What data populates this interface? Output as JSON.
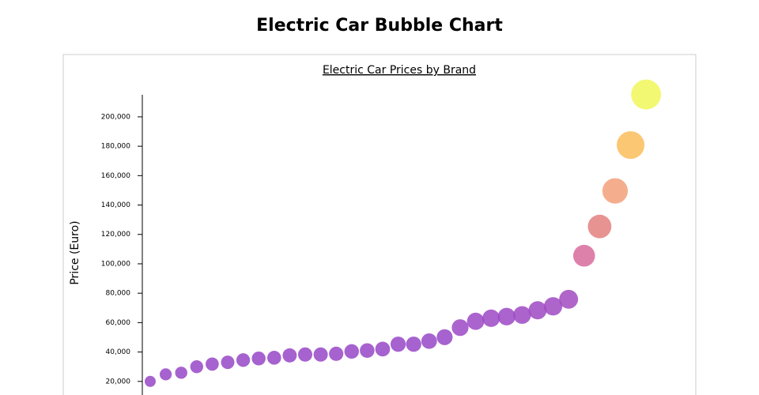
{
  "chart_data": {
    "type": "bubble",
    "title": "Electric Car Bubble Chart",
    "subtitle": "Electric Car Prices by Brand",
    "y_label": "Price (Euro)",
    "categories": [
      null,
      null,
      null,
      null,
      null,
      null,
      null,
      null,
      null,
      null,
      null,
      null,
      null,
      null,
      null,
      null,
      null,
      null,
      null,
      null,
      null,
      null,
      null,
      null,
      null,
      null,
      null,
      null,
      null,
      null,
      null,
      null,
      null
    ],
    "values": [
      20000,
      24800,
      25900,
      30000,
      31800,
      33000,
      34500,
      35600,
      36100,
      37700,
      38300,
      38300,
      38800,
      40400,
      41000,
      42000,
      45300,
      45300,
      47400,
      50100,
      56600,
      60900,
      63000,
      64100,
      65200,
      68400,
      71100,
      75900,
      105500,
      125400,
      149600,
      180800,
      215200
    ],
    "colors": [
      "#9747c7",
      "#9747c7",
      "#9747c7",
      "#9747c7",
      "#9747c7",
      "#9747c7",
      "#9747c7",
      "#9747c7",
      "#9747c7",
      "#9747c7",
      "#9747c7",
      "#9747c7",
      "#9747c7",
      "#9747c7",
      "#9747c7",
      "#9747c7",
      "#9747c7",
      "#9747c7",
      "#9747c7",
      "#9747c7",
      "#9c48c5",
      "#9c48c5",
      "#9c48c5",
      "#9c48c5",
      "#9e49c3",
      "#9e49c3",
      "#a04ac2",
      "#a24bc0",
      "#d86b9b",
      "#e3807f",
      "#f2a07a",
      "#fbbd5b",
      "#f1f75a"
    ],
    "ylim": [
      0,
      215000
    ],
    "yticks": [
      {
        "value": 20000,
        "label": "20,000"
      },
      {
        "value": 40000,
        "label": "40,000"
      },
      {
        "value": 60000,
        "label": "60,000"
      },
      {
        "value": 80000,
        "label": "80,000"
      },
      {
        "value": 100000,
        "label": "100,000"
      },
      {
        "value": 120000,
        "label": "120,000"
      },
      {
        "value": 140000,
        "label": "140,000"
      },
      {
        "value": 160000,
        "label": "160,000"
      },
      {
        "value": 180000,
        "label": "180,000"
      },
      {
        "value": 200000,
        "label": "200,000"
      }
    ]
  }
}
